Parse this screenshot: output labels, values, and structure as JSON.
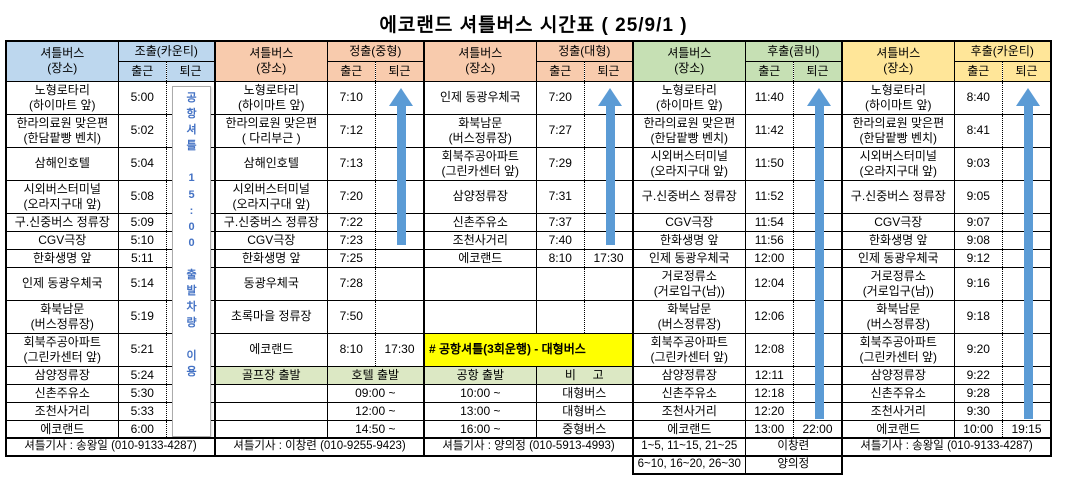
{
  "title": "에코랜드 셔틀버스 시간표 ( 25/9/1 )",
  "colors": {
    "group1_header": "#BDD7EE",
    "group2_header": "#F8CBAD",
    "group3_header": "#F8CBAD",
    "group4_header": "#C6E0B4",
    "group5_header": "#FFE699",
    "subheader_bg": "#DCE8C4",
    "banner_bg": "#FFFF00",
    "arrow_blue": "#5B9BD5",
    "note_blue": "#4472C4"
  },
  "groups": [
    {
      "name": "조출(카운티)",
      "place_label": "셔틀버스",
      "place_sub": "(장소)",
      "go_label": "출근",
      "leave_label": "퇴근",
      "header_bg": "#BDD7EE",
      "note": "공\n항\n셔\n틀\n\n1\n5\n:\n0\n0\n\n출\n발\n차\n량\n\n이\n용",
      "rows": [
        {
          "p": "노형로타리\n(하이마트 앞)",
          "g": "5:00",
          "h": 1
        },
        {
          "p": "한라의료원 맞은편\n(한담팥빵 벤치)",
          "g": "5:02",
          "h": 1
        },
        {
          "p": "삼해인호텔",
          "g": "5:04",
          "h": 1
        },
        {
          "p": "시외버스터미널\n(오라지구대 앞)",
          "g": "5:08",
          "h": 1
        },
        {
          "p": "구.신중버스 정류장",
          "g": "5:09"
        },
        {
          "p": "CGV극장",
          "g": "5:10"
        },
        {
          "p": "한화생명 앞",
          "g": "5:11"
        },
        {
          "p": "인제 동광우체국",
          "g": "5:14",
          "h": 1
        },
        {
          "p": "화북남문\n(버스정류장)",
          "g": "5:19",
          "h": 1
        },
        {
          "p": "회북주공아파트\n(그린카센터 앞)",
          "g": "5:21",
          "h": 1
        },
        {
          "p": "삼양정류장",
          "g": "5:24"
        },
        {
          "p": "신촌주유소",
          "g": "5:30"
        },
        {
          "p": "조천사거리",
          "g": "5:33"
        },
        {
          "p": "에코랜드",
          "g": "6:00"
        }
      ],
      "footer": "셔틀기사 : 송왕일 (010-9133-4287)"
    },
    {
      "name": "정출(중형)",
      "place_label": "셔틀버스",
      "place_sub": "(장소)",
      "go_label": "출근",
      "leave_label": "퇴근",
      "header_bg": "#F8CBAD",
      "rows": [
        {
          "p": "노형로타리\n(하이마트 앞)",
          "g": "7:10",
          "h": 1
        },
        {
          "p": "한라의료원 맞은편\n( 다리부근 )",
          "g": "7:12",
          "h": 1
        },
        {
          "p": "삼해인호텔",
          "g": "7:13",
          "h": 1
        },
        {
          "p": "시외버스터미널\n(오라지구대 앞)",
          "g": "7:20",
          "h": 1
        },
        {
          "p": "구.신중버스 정류장",
          "g": "7:22"
        },
        {
          "p": "CGV극장",
          "g": "7:23"
        },
        {
          "p": "한화생명 앞",
          "g": "7:25"
        },
        {
          "p": "동광우체국",
          "g": "7:28",
          "h": 1
        },
        {
          "p": "초록마을 정류장",
          "g": "7:50",
          "h": 1
        },
        {
          "p": "에코랜드",
          "g": "8:10",
          "l": "17:30",
          "h": 1
        },
        {
          "t": "sub",
          "p": "골프장 출발",
          "s": "호텔 출발"
        },
        {
          "t": "merge",
          "p": "",
          "s": "09:00 ~"
        },
        {
          "t": "merge",
          "p": "",
          "s": "12:00 ~"
        },
        {
          "t": "merge",
          "p": "",
          "s": "14:50 ~"
        }
      ],
      "footer": "셔틀기사 : 이창련 (010-9255-9423)"
    },
    {
      "name": "정출(대형)",
      "place_label": "셔틀버스",
      "place_sub": "(장소)",
      "go_label": "출근",
      "leave_label": "퇴근",
      "header_bg": "#F8CBAD",
      "rows": [
        {
          "p": "인제 동광우체국",
          "g": "7:20",
          "h": 1
        },
        {
          "p": "화북남문\n(버스정류장)",
          "g": "7:27",
          "h": 1
        },
        {
          "p": "회북주공아파트\n(그린카센터 앞)",
          "g": "7:29",
          "h": 1
        },
        {
          "p": "삼양정류장",
          "g": "7:31",
          "h": 1
        },
        {
          "p": "신촌주유소",
          "g": "7:37"
        },
        {
          "p": "조천사거리",
          "g": "7:40"
        },
        {
          "p": "에코랜드",
          "g": "8:10",
          "l": "17:30"
        },
        {
          "t": "empty",
          "h": 1
        },
        {
          "t": "empty",
          "h": 1
        },
        {
          "t": "banner",
          "p": "# 공항셔틀(3회운행) - 대형버스",
          "h": 1
        },
        {
          "t": "sub",
          "p": "공항 출발",
          "s": "비     고"
        },
        {
          "t": "merge",
          "p": "10:00 ~",
          "s": "대형버스"
        },
        {
          "t": "merge",
          "p": "13:00 ~",
          "s": "대형버스"
        },
        {
          "t": "merge",
          "p": "16:00 ~",
          "s": "중형버스"
        }
      ],
      "footer": "셔틀기사 : 양의정 (010-5913-4993)"
    },
    {
      "name": "후출(콤비)",
      "place_label": "셔틀버스",
      "place_sub": "(장소)",
      "go_label": "출근",
      "leave_label": "퇴근",
      "header_bg": "#C6E0B4",
      "rows": [
        {
          "p": "노형로타리\n(하이마트 앞)",
          "g": "11:40",
          "h": 1
        },
        {
          "p": "한라의료원 맞은편\n(한담팥빵 벤치)",
          "g": "11:42",
          "h": 1
        },
        {
          "p": "시외버스터미널\n(오라지구대 앞)",
          "g": "11:50",
          "h": 1
        },
        {
          "p": "구.신중버스 정류장",
          "g": "11:52",
          "h": 1
        },
        {
          "p": "CGV극장",
          "g": "11:54"
        },
        {
          "p": "한화생명 앞",
          "g": "11:56"
        },
        {
          "p": "인제 동광우체국",
          "g": "12:00"
        },
        {
          "p": "거로정류소\n(거로입구(남))",
          "g": "12:04",
          "h": 1
        },
        {
          "p": "화북남문\n(버스정류장)",
          "g": "12:06",
          "h": 1
        },
        {
          "p": "회북주공아파트\n(그린카센터 앞)",
          "g": "12:08",
          "h": 1
        },
        {
          "p": "삼양정류장",
          "g": "12:11"
        },
        {
          "p": "신촌주유소",
          "g": "12:18"
        },
        {
          "p": "조천사거리",
          "g": "12:20"
        },
        {
          "p": "에코랜드",
          "g": "13:00",
          "l": "22:00"
        }
      ],
      "footer_rows": [
        [
          "1~5, 11~15, 21~25",
          "이창련"
        ],
        [
          "6~10, 16~20, 26~30",
          "양의정"
        ]
      ]
    },
    {
      "name": "후출(카운티)",
      "place_label": "셔틀버스",
      "place_sub": "(장소)",
      "go_label": "출근",
      "leave_label": "퇴근",
      "header_bg": "#FFE699",
      "rows": [
        {
          "p": "노형로타리\n(하이마트 앞)",
          "g": "8:40",
          "h": 1
        },
        {
          "p": "한라의료원 맞은편\n(한담팥빵 벤치)",
          "g": "8:41",
          "h": 1
        },
        {
          "p": "시외버스터미널\n(오라지구대 앞)",
          "g": "9:03",
          "h": 1
        },
        {
          "p": "구.신중버스 정류장",
          "g": "9:05",
          "h": 1
        },
        {
          "p": "CGV극장",
          "g": "9:07"
        },
        {
          "p": "한화생명 앞",
          "g": "9:08"
        },
        {
          "p": "인제 동광우체국",
          "g": "9:12"
        },
        {
          "p": "거로정류소\n(거로입구(남))",
          "g": "9:16",
          "h": 1
        },
        {
          "p": "화북남문\n(버스정류장)",
          "g": "9:18",
          "h": 1
        },
        {
          "p": "회북주공아파트\n(그린카센터 앞)",
          "g": "9:20",
          "h": 1
        },
        {
          "p": "삼양정류장",
          "g": "9:22"
        },
        {
          "p": "신촌주유소",
          "g": "9:28"
        },
        {
          "p": "조천사거리",
          "g": "9:30"
        },
        {
          "p": "에코랜드",
          "g": "10:00",
          "l": "19:15"
        }
      ],
      "footer": "셔틀기사 : 송왕일 (010-9133-4287)"
    }
  ]
}
